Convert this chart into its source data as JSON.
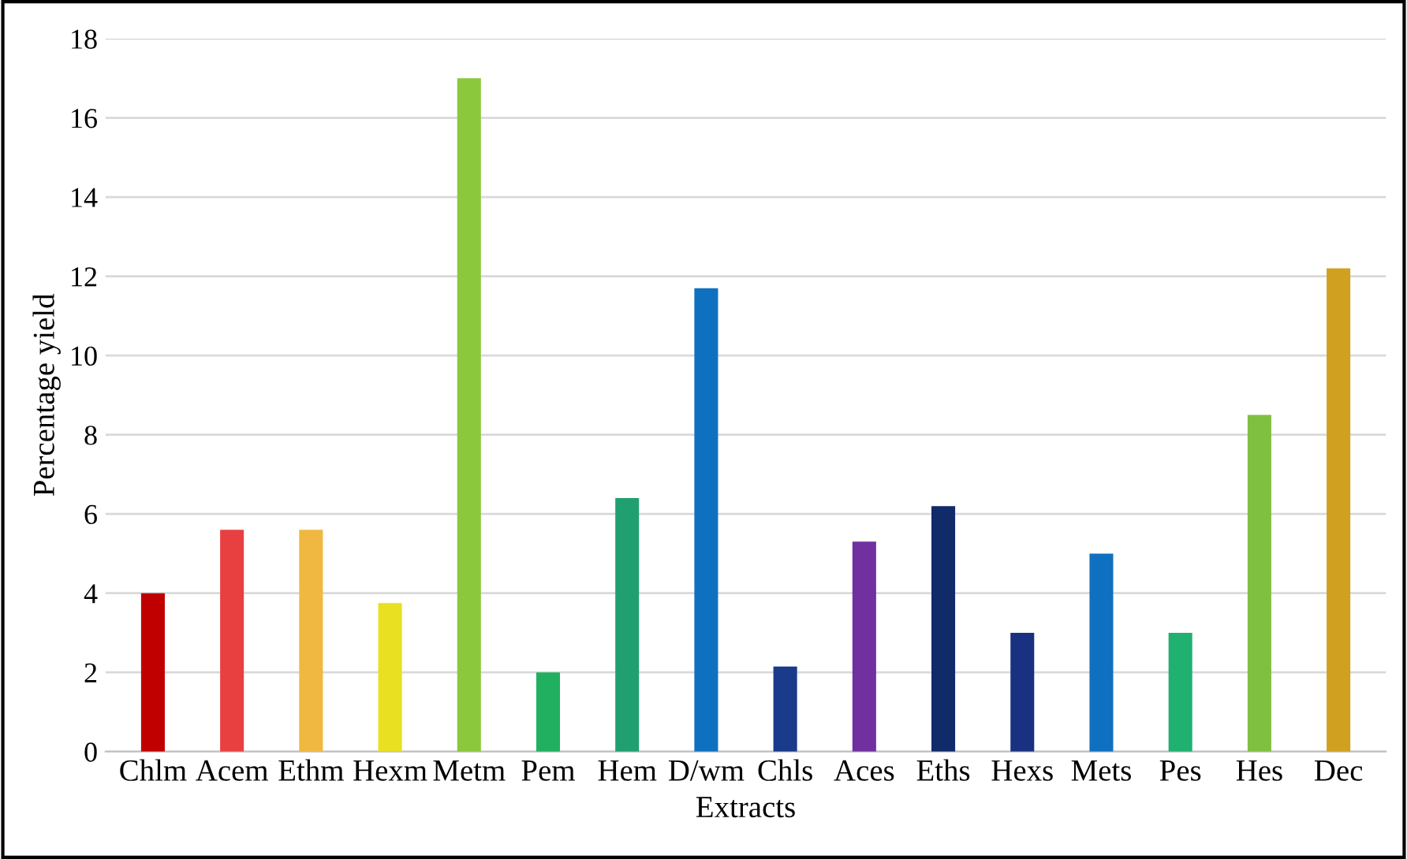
{
  "chart_data": {
    "type": "bar",
    "xlabel": "Extracts",
    "ylabel": "Percentage yield",
    "categories": [
      "Chlm",
      "Acem",
      "Ethm",
      "Hexm",
      "Metm",
      "Pem",
      "Hem",
      "D/wm",
      "Chls",
      "Aces",
      "Eths",
      "Hexs",
      "Mets",
      "Pes",
      "Hes",
      "Dec"
    ],
    "values": [
      4.0,
      5.6,
      5.6,
      3.75,
      17.0,
      2.0,
      6.4,
      11.7,
      2.15,
      5.3,
      6.2,
      3.0,
      5.0,
      3.0,
      8.5,
      12.2
    ],
    "colors": [
      "#c00000",
      "#e84040",
      "#f0b840",
      "#e8e020",
      "#8cc83c",
      "#20b060",
      "#20a070",
      "#1070c0",
      "#1a3a8a",
      "#7030a0",
      "#102a6a",
      "#1a3080",
      "#1070c0",
      "#20b070",
      "#80c040",
      "#d0a020"
    ],
    "ylim": [
      0,
      18
    ],
    "yticks": [
      0,
      2,
      4,
      6,
      8,
      10,
      12,
      14,
      16,
      18
    ],
    "grid": "y",
    "legend": false
  }
}
